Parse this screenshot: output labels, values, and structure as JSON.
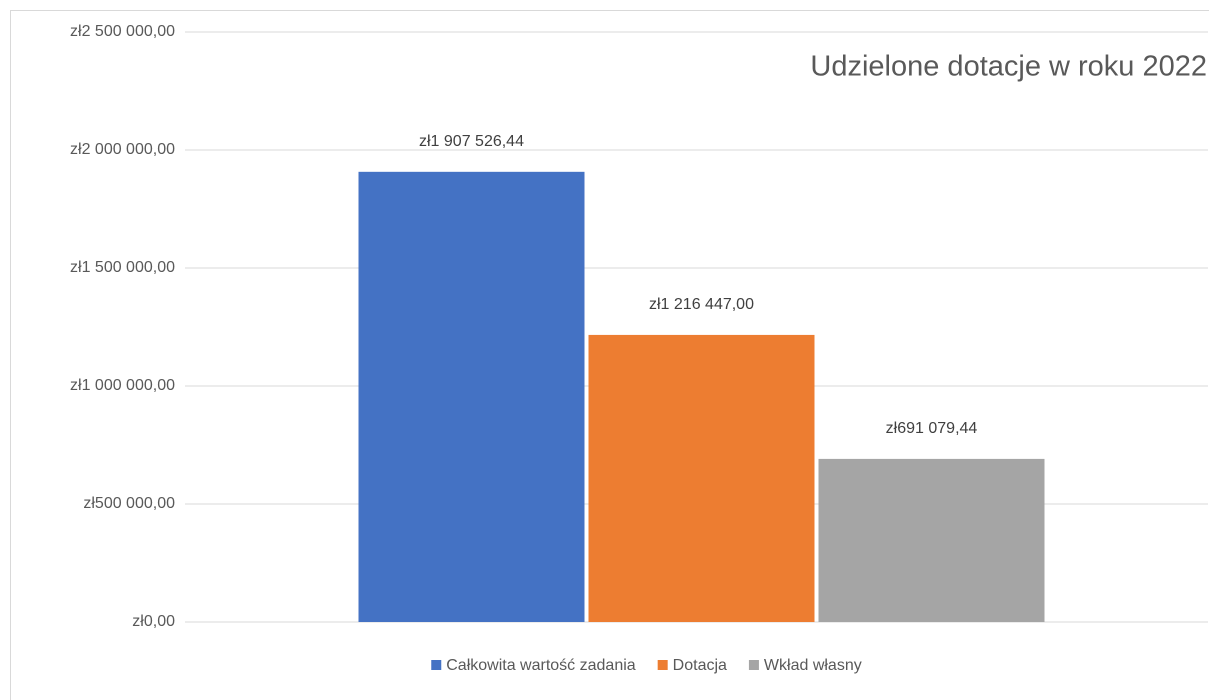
{
  "chart_data": {
    "type": "bar",
    "title": "Udzielone dotacje w roku 2022",
    "categories": [
      null
    ],
    "series": [
      {
        "name": "Całkowita wartość zadania",
        "color": "#4472c4",
        "values": [
          1907526.44
        ],
        "value_labels": [
          "zł1 907 526,44"
        ]
      },
      {
        "name": "Dotacja",
        "color": "#ed7d31",
        "values": [
          1216447
        ],
        "value_labels": [
          "zł1 216 447,00"
        ]
      },
      {
        "name": "Wkład własny",
        "color": "#a5a5a5",
        "values": [
          691079.44
        ],
        "value_labels": [
          "zł691 079,44"
        ]
      }
    ],
    "ylim": [
      0,
      2500000
    ],
    "yticks": [
      {
        "value": 0,
        "label": "zł0,00"
      },
      {
        "value": 500000,
        "label": "zł500 000,00"
      },
      {
        "value": 1000000,
        "label": "zł1 000 000,00"
      },
      {
        "value": 1500000,
        "label": "zł1 500 000,00"
      },
      {
        "value": 2000000,
        "label": "zł2 000 000,00"
      },
      {
        "value": 2500000,
        "label": "zł2 500 000,00"
      }
    ],
    "grid": true,
    "legend": "bottom"
  }
}
